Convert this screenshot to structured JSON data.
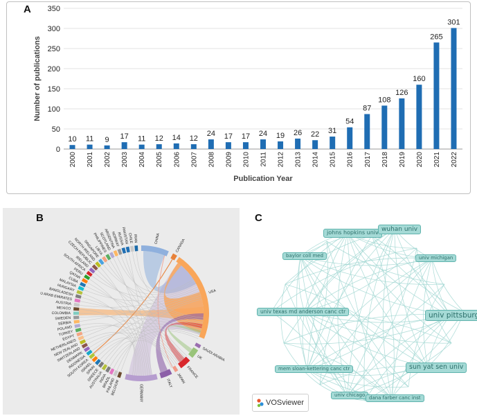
{
  "panel_labels": {
    "a": "A",
    "b": "B",
    "c": "C"
  },
  "chart_data": [
    {
      "type": "bar",
      "panel": "A",
      "title": "",
      "xlabel": "Publication Year",
      "ylabel": "Number of publications",
      "ylim": [
        0,
        350
      ],
      "yticks": [
        0,
        50,
        100,
        150,
        200,
        250,
        300,
        350
      ],
      "grid": true,
      "color": "#1f6db3",
      "categories": [
        "2000",
        "2001",
        "2002",
        "2003",
        "2004",
        "2005",
        "2006",
        "2007",
        "2008",
        "2009",
        "2010",
        "2011",
        "2012",
        "2013",
        "2014",
        "2015",
        "2016",
        "2017",
        "2018",
        "2019",
        "2020",
        "2021",
        "2022"
      ],
      "values": [
        10,
        11,
        9,
        17,
        11,
        12,
        14,
        12,
        24,
        17,
        17,
        24,
        19,
        26,
        22,
        31,
        54,
        87,
        108,
        126,
        160,
        265,
        301
      ]
    },
    {
      "type": "chord",
      "panel": "B",
      "labels": [
        "CHINA",
        "CANADA",
        "USA",
        "SAUDI ARABIA",
        "UK",
        "FRANCE",
        "JAPAN",
        "ITALY",
        "GERMANY",
        "BELGIUM",
        "FINLAND",
        "BRAZIL",
        "INDIA",
        "AUSTRALIA",
        "GREECE",
        "SPAIN",
        "ISRAEL",
        "SOUTH KOREA",
        "INDONESIA",
        "DENMARK",
        "SWITZERLAND",
        "NEW ZEALAND",
        "NETHERLANDS",
        "EGYPT",
        "TURKEY",
        "POLAND",
        "SERBIA",
        "SWEDEN",
        "COLOMBIA",
        "MEXICO",
        "AUSTRIA",
        "U ARAB EMIRATES",
        "BANGLADESH",
        "HUNGARY",
        "MALAYSIA",
        "CUBA",
        "QATAR",
        "PERU",
        "SOUTH AFRICA",
        "IRELAND",
        "CZECH REPUBLIC",
        "NORTH IRELAND",
        "SINGAPORE",
        "LIBYA",
        "PHILIPPINES",
        "SCOTLAND",
        "ARGENTINA",
        "NORWAY",
        "RUSSIA",
        "PAKISTAN",
        "CHILE",
        "IRAN"
      ]
    }
  ],
  "network": {
    "nodes": [
      {
        "label": "johns hopkins univ"
      },
      {
        "label": "wuhan univ"
      },
      {
        "label": "baylor coll med"
      },
      {
        "label": "univ michigan"
      },
      {
        "label": "univ texas md anderson canc ctr"
      },
      {
        "label": "univ pittsburgh"
      },
      {
        "label": "mem sloan-kettering canc ctr"
      },
      {
        "label": "sun yat sen univ"
      },
      {
        "label": "univ chicago"
      },
      {
        "label": "dana farber canc inst"
      }
    ],
    "brand": "VOSviewer"
  }
}
